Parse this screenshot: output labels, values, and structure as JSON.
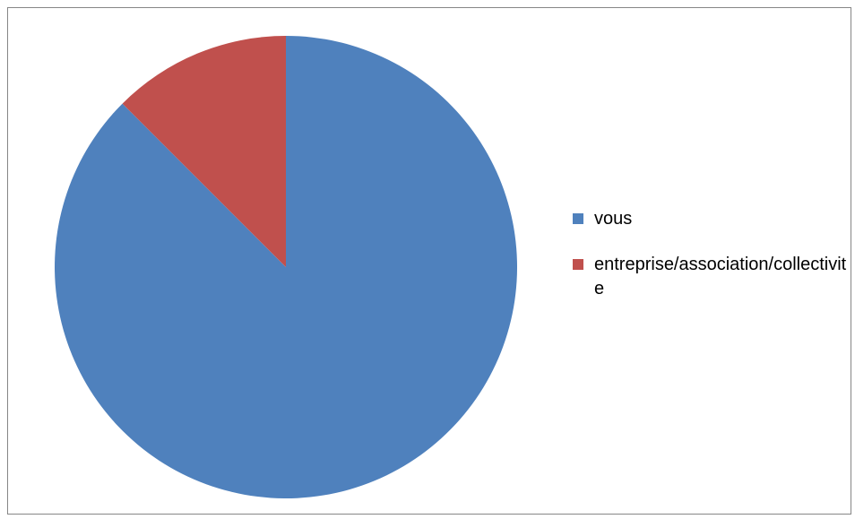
{
  "chart_data": {
    "type": "pie",
    "title": "",
    "start_angle_deg": 0,
    "direction": "clockwise",
    "legend_position": "right",
    "series": [
      {
        "values": [
          87.5,
          12.5
        ]
      }
    ],
    "categories": [
      "vous",
      "entreprise/association/collectivite"
    ],
    "colors": [
      "#4F81BD",
      "#C0504D"
    ]
  },
  "legend": {
    "items": [
      {
        "label": "vous",
        "color": "#4F81BD"
      },
      {
        "label": "entreprise/association/collectivite",
        "color": "#C0504D"
      }
    ]
  }
}
